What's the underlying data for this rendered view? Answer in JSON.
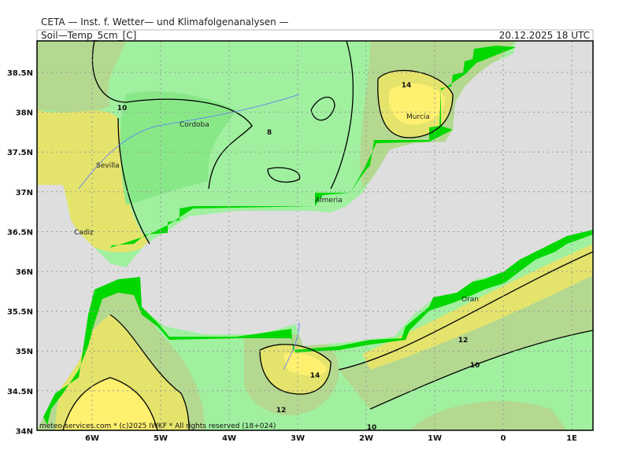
{
  "header": {
    "title": "CETA — Inst. f. Wetter— und Klimafolgenanalysen —",
    "parameter": "Soil—Temp_5cm_[C]",
    "valid_time": "20.12.2025 18 UTC"
  },
  "map": {
    "lat_labels": [
      "38.5N",
      "38N",
      "37.5N",
      "37N",
      "36.5N",
      "36N",
      "35.5N",
      "35N",
      "34.5N",
      "34N"
    ],
    "lon_labels": [
      "6W",
      "5W",
      "4W",
      "3W",
      "2W",
      "1W",
      "0",
      "1E"
    ],
    "cities": [
      "Cordoba",
      "Sevilla",
      "Cadiz",
      "Almeria",
      "Murcia",
      "Oran"
    ],
    "contour_labels": [
      "10",
      "8",
      "14",
      "12",
      "10",
      "14",
      "12",
      "10"
    ],
    "footer": "meteo-services.com * (c)2025 IWKF * All rights reserved (18+024)"
  }
}
